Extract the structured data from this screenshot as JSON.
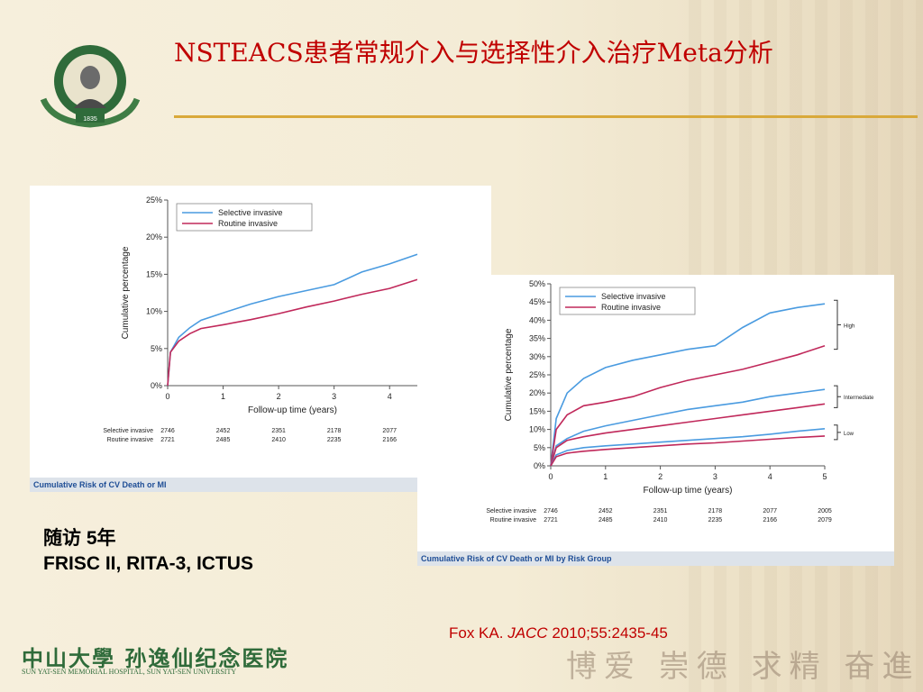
{
  "slide": {
    "title": "NSTEACS患者常规介入与选择性介入治疗Meta分析",
    "note_line1": "随访 5年",
    "note_line2": "FRISC II, RITA-3, ICTUS",
    "citation_prefix": "Fox KA. ",
    "citation_journal": "JACC",
    "citation_suffix": " 2010;55:2435-45",
    "footer_name": "中山大學 孙逸仙纪念医院",
    "footer_sub": "SUN YAT-SEN MEMORIAL HOSPITAL, SUN YAT-SEN UNIVERSITY",
    "motto": "博爱 崇德 求精 奋進",
    "logo_year": "1835"
  },
  "colors": {
    "selective": "#4a9be0",
    "routine": "#c0285a",
    "title": "#c00000"
  },
  "chart_data": [
    {
      "type": "line",
      "caption": "Cumulative Risk of CV Death or MI",
      "xlabel": "Follow-up time (years)",
      "ylabel": "Cumulative percentage",
      "xlim": [
        0,
        4.5
      ],
      "ylim": [
        0,
        25
      ],
      "xticks": [
        "0",
        "1",
        "2",
        "3",
        "4"
      ],
      "yticks": [
        "0%",
        "5%",
        "10%",
        "15%",
        "20%",
        "25%"
      ],
      "legend": "top-left",
      "series": [
        {
          "name": "Selective invasive",
          "color": "#4a9be0",
          "x": [
            0,
            0.05,
            0.2,
            0.4,
            0.6,
            1,
            1.5,
            2,
            2.5,
            3,
            3.5,
            4,
            4.5
          ],
          "y": [
            0,
            4.5,
            6.5,
            7.8,
            8.8,
            9.8,
            11,
            12,
            12.8,
            13.6,
            15.3,
            16.4,
            17.7
          ]
        },
        {
          "name": "Routine invasive",
          "color": "#c0285a",
          "x": [
            0,
            0.05,
            0.2,
            0.4,
            0.6,
            1,
            1.5,
            2,
            2.5,
            3,
            3.5,
            4,
            4.5
          ],
          "y": [
            0,
            4.5,
            6,
            7,
            7.7,
            8.2,
            8.9,
            9.7,
            10.6,
            11.4,
            12.3,
            13.1,
            14.3
          ]
        }
      ],
      "risk_table": [
        {
          "label": "Selective invasive",
          "values": [
            "2746",
            "2452",
            "2351",
            "2178",
            "2077"
          ]
        },
        {
          "label": "Routine invasive",
          "values": [
            "2721",
            "2485",
            "2410",
            "2235",
            "2166"
          ]
        }
      ]
    },
    {
      "type": "line",
      "caption": "Cumulative Risk of CV Death or MI by Risk Group",
      "xlabel": "Follow-up time (years)",
      "ylabel": "Cumulative percentage",
      "xlim": [
        0,
        5
      ],
      "ylim": [
        0,
        50
      ],
      "xticks": [
        "0",
        "1",
        "2",
        "3",
        "4",
        "5"
      ],
      "yticks": [
        "0%",
        "5%",
        "10%",
        "15%",
        "20%",
        "25%",
        "30%",
        "35%",
        "40%",
        "45%",
        "50%"
      ],
      "legend": "top-left",
      "legend_entries": [
        {
          "name": "Selective invasive",
          "color": "#4a9be0"
        },
        {
          "name": "Routine invasive",
          "color": "#c0285a"
        }
      ],
      "groups": [
        "High",
        "Intermediate",
        "Low"
      ],
      "series": [
        {
          "group": "High",
          "arm": "selective",
          "color": "#4a9be0",
          "x": [
            0,
            0.1,
            0.3,
            0.6,
            1,
            1.5,
            2,
            2.5,
            3,
            3.5,
            4,
            4.5,
            5
          ],
          "y": [
            0,
            13,
            20,
            24,
            27,
            29,
            30.5,
            32,
            33,
            38,
            42,
            43.5,
            44.5
          ]
        },
        {
          "group": "High",
          "arm": "routine",
          "color": "#c0285a",
          "x": [
            0,
            0.1,
            0.3,
            0.6,
            1,
            1.5,
            2,
            2.5,
            3,
            3.5,
            4,
            4.5,
            5
          ],
          "y": [
            0,
            10,
            14,
            16.5,
            17.5,
            19,
            21.5,
            23.5,
            25,
            26.5,
            28.5,
            30.5,
            33
          ]
        },
        {
          "group": "Intermediate",
          "arm": "selective",
          "color": "#4a9be0",
          "x": [
            0,
            0.1,
            0.3,
            0.6,
            1,
            1.5,
            2,
            2.5,
            3,
            3.5,
            4,
            4.5,
            5
          ],
          "y": [
            0,
            5.5,
            7.5,
            9.5,
            11,
            12.5,
            14,
            15.5,
            16.5,
            17.5,
            19,
            20,
            21
          ]
        },
        {
          "group": "Intermediate",
          "arm": "routine",
          "color": "#c0285a",
          "x": [
            0,
            0.1,
            0.3,
            0.6,
            1,
            1.5,
            2,
            2.5,
            3,
            3.5,
            4,
            4.5,
            5
          ],
          "y": [
            0,
            5,
            7,
            8,
            9,
            10,
            11,
            12,
            13,
            14,
            15,
            16,
            17
          ]
        },
        {
          "group": "Low",
          "arm": "selective",
          "color": "#4a9be0",
          "x": [
            0,
            0.1,
            0.3,
            0.6,
            1,
            1.5,
            2,
            2.5,
            3,
            3.5,
            4,
            4.5,
            5
          ],
          "y": [
            0,
            3,
            4.2,
            5,
            5.5,
            6,
            6.5,
            7,
            7.5,
            8,
            8.7,
            9.5,
            10.2
          ]
        },
        {
          "group": "Low",
          "arm": "routine",
          "color": "#c0285a",
          "x": [
            0,
            0.1,
            0.3,
            0.6,
            1,
            1.5,
            2,
            2.5,
            3,
            3.5,
            4,
            4.5,
            5
          ],
          "y": [
            0,
            2.5,
            3.5,
            4,
            4.5,
            5,
            5.5,
            6,
            6.3,
            6.8,
            7.3,
            7.8,
            8.2
          ]
        }
      ],
      "risk_table": [
        {
          "label": "Selective invasive",
          "values": [
            "2746",
            "2452",
            "2351",
            "2178",
            "2077",
            "2005"
          ]
        },
        {
          "label": "Routine invasive",
          "values": [
            "2721",
            "2485",
            "2410",
            "2235",
            "2166",
            "2079"
          ]
        }
      ]
    }
  ]
}
